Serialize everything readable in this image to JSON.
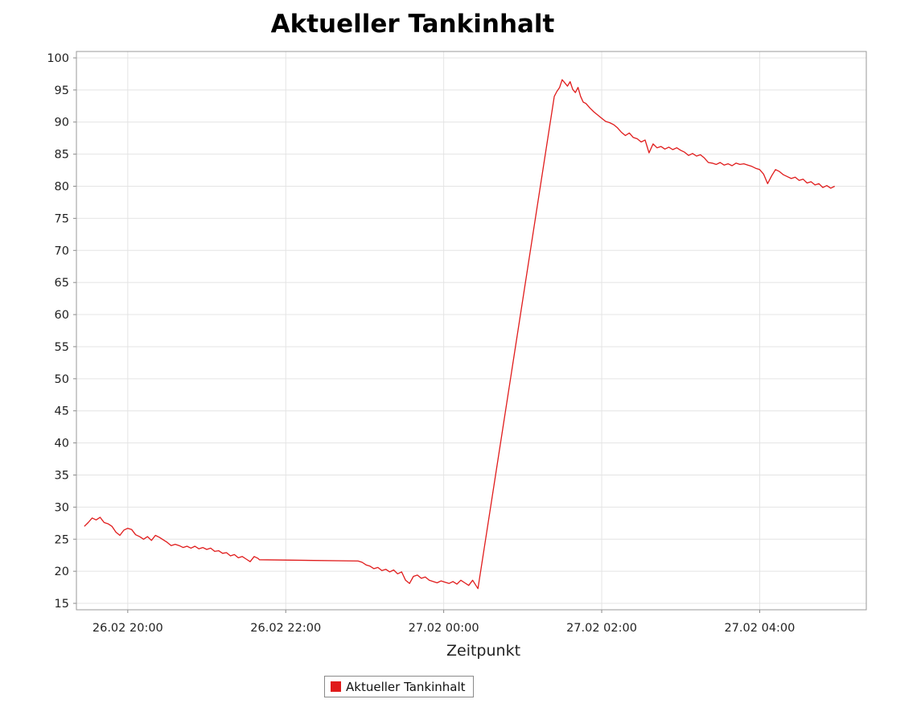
{
  "chart_data": {
    "type": "line",
    "title": "Aktueller Tankinhalt",
    "xlabel": "Zeitpunkt",
    "ylabel": "",
    "ylim": [
      14,
      101
    ],
    "xlim": [
      "26.02 19:21",
      "27.02 05:21"
    ],
    "yticks": [
      15,
      20,
      25,
      30,
      35,
      40,
      45,
      50,
      55,
      60,
      65,
      70,
      75,
      80,
      85,
      90,
      95,
      100
    ],
    "xticks": [
      {
        "time": "26.02 20:00",
        "label": "26.02 20:00"
      },
      {
        "time": "26.02 22:00",
        "label": "26.02 22:00"
      },
      {
        "time": "27.02 00:00",
        "label": "27.02 00:00"
      },
      {
        "time": "27.02 02:00",
        "label": "27.02 02:00"
      },
      {
        "time": "27.02 04:00",
        "label": "27.02 04:00"
      }
    ],
    "grid": true,
    "legend_position": "bottom-center",
    "series": [
      {
        "name": "Aktueller Tankinhalt",
        "color": "#e01b1b",
        "points": [
          [
            "26.02 19:27",
            27.0
          ],
          [
            "26.02 19:30",
            27.6
          ],
          [
            "26.02 19:33",
            28.3
          ],
          [
            "26.02 19:36",
            28.0
          ],
          [
            "26.02 19:39",
            28.4
          ],
          [
            "26.02 19:42",
            27.6
          ],
          [
            "26.02 19:45",
            27.4
          ],
          [
            "26.02 19:48",
            27.0
          ],
          [
            "26.02 19:51",
            26.1
          ],
          [
            "26.02 19:54",
            25.6
          ],
          [
            "26.02 19:57",
            26.4
          ],
          [
            "26.02 20:00",
            26.7
          ],
          [
            "26.02 20:03",
            26.5
          ],
          [
            "26.02 20:06",
            25.7
          ],
          [
            "26.02 20:09",
            25.4
          ],
          [
            "26.02 20:12",
            25.0
          ],
          [
            "26.02 20:15",
            25.4
          ],
          [
            "26.02 20:18",
            24.8
          ],
          [
            "26.02 20:21",
            25.6
          ],
          [
            "26.02 20:24",
            25.3
          ],
          [
            "26.02 20:27",
            24.9
          ],
          [
            "26.02 20:30",
            24.5
          ],
          [
            "26.02 20:33",
            24.0
          ],
          [
            "26.02 20:36",
            24.2
          ],
          [
            "26.02 20:39",
            24.0
          ],
          [
            "26.02 20:42",
            23.7
          ],
          [
            "26.02 20:45",
            23.9
          ],
          [
            "26.02 20:48",
            23.6
          ],
          [
            "26.02 20:51",
            23.9
          ],
          [
            "26.02 20:54",
            23.5
          ],
          [
            "26.02 20:57",
            23.7
          ],
          [
            "26.02 21:00",
            23.4
          ],
          [
            "26.02 21:03",
            23.6
          ],
          [
            "26.02 21:06",
            23.1
          ],
          [
            "26.02 21:09",
            23.2
          ],
          [
            "26.02 21:12",
            22.8
          ],
          [
            "26.02 21:15",
            22.9
          ],
          [
            "26.02 21:18",
            22.4
          ],
          [
            "26.02 21:21",
            22.6
          ],
          [
            "26.02 21:24",
            22.1
          ],
          [
            "26.02 21:27",
            22.3
          ],
          [
            "26.02 21:30",
            21.9
          ],
          [
            "26.02 21:33",
            21.5
          ],
          [
            "26.02 21:36",
            22.3
          ],
          [
            "26.02 21:39",
            22.0
          ],
          [
            "26.02 21:40",
            21.8
          ],
          [
            "26.02 22:55",
            21.6
          ],
          [
            "26.02 22:58",
            21.4
          ],
          [
            "26.02 23:01",
            21.0
          ],
          [
            "26.02 23:04",
            20.8
          ],
          [
            "26.02 23:07",
            20.4
          ],
          [
            "26.02 23:10",
            20.6
          ],
          [
            "26.02 23:13",
            20.1
          ],
          [
            "26.02 23:16",
            20.3
          ],
          [
            "26.02 23:19",
            19.9
          ],
          [
            "26.02 23:22",
            20.2
          ],
          [
            "26.02 23:25",
            19.6
          ],
          [
            "26.02 23:28",
            19.9
          ],
          [
            "26.02 23:31",
            18.6
          ],
          [
            "26.02 23:34",
            18.1
          ],
          [
            "26.02 23:37",
            19.2
          ],
          [
            "26.02 23:40",
            19.4
          ],
          [
            "26.02 23:43",
            18.9
          ],
          [
            "26.02 23:46",
            19.1
          ],
          [
            "26.02 23:49",
            18.6
          ],
          [
            "26.02 23:52",
            18.4
          ],
          [
            "26.02 23:55",
            18.2
          ],
          [
            "26.02 23:58",
            18.5
          ],
          [
            "27.02 00:01",
            18.3
          ],
          [
            "27.02 00:04",
            18.1
          ],
          [
            "27.02 00:07",
            18.4
          ],
          [
            "27.02 00:10",
            18.0
          ],
          [
            "27.02 00:13",
            18.6
          ],
          [
            "27.02 00:16",
            18.2
          ],
          [
            "27.02 00:19",
            17.8
          ],
          [
            "27.02 00:22",
            18.6
          ],
          [
            "27.02 00:26",
            17.3
          ],
          [
            "27.02 01:24",
            94.0
          ],
          [
            "27.02 01:26",
            94.8
          ],
          [
            "27.02 01:28",
            95.4
          ],
          [
            "27.02 01:30",
            96.6
          ],
          [
            "27.02 01:32",
            96.1
          ],
          [
            "27.02 01:34",
            95.6
          ],
          [
            "27.02 01:36",
            96.3
          ],
          [
            "27.02 01:38",
            95.1
          ],
          [
            "27.02 01:40",
            94.6
          ],
          [
            "27.02 01:42",
            95.4
          ],
          [
            "27.02 01:44",
            94.0
          ],
          [
            "27.02 01:46",
            93.1
          ],
          [
            "27.02 01:48",
            92.9
          ],
          [
            "27.02 01:51",
            92.2
          ],
          [
            "27.02 01:54",
            91.6
          ],
          [
            "27.02 01:57",
            91.1
          ],
          [
            "27.02 02:00",
            90.6
          ],
          [
            "27.02 02:03",
            90.1
          ],
          [
            "27.02 02:06",
            89.9
          ],
          [
            "27.02 02:09",
            89.6
          ],
          [
            "27.02 02:12",
            89.1
          ],
          [
            "27.02 02:15",
            88.4
          ],
          [
            "27.02 02:18",
            87.9
          ],
          [
            "27.02 02:21",
            88.3
          ],
          [
            "27.02 02:24",
            87.6
          ],
          [
            "27.02 02:27",
            87.4
          ],
          [
            "27.02 02:30",
            86.9
          ],
          [
            "27.02 02:33",
            87.2
          ],
          [
            "27.02 02:36",
            85.2
          ],
          [
            "27.02 02:39",
            86.6
          ],
          [
            "27.02 02:42",
            86.0
          ],
          [
            "27.02 02:45",
            86.2
          ],
          [
            "27.02 02:48",
            85.8
          ],
          [
            "27.02 02:51",
            86.1
          ],
          [
            "27.02 02:54",
            85.7
          ],
          [
            "27.02 02:57",
            86.0
          ],
          [
            "27.02 03:00",
            85.6
          ],
          [
            "27.02 03:03",
            85.3
          ],
          [
            "27.02 03:06",
            84.8
          ],
          [
            "27.02 03:09",
            85.1
          ],
          [
            "27.02 03:12",
            84.7
          ],
          [
            "27.02 03:15",
            84.9
          ],
          [
            "27.02 03:18",
            84.4
          ],
          [
            "27.02 03:21",
            83.7
          ],
          [
            "27.02 03:24",
            83.6
          ],
          [
            "27.02 03:27",
            83.4
          ],
          [
            "27.02 03:30",
            83.7
          ],
          [
            "27.02 03:33",
            83.3
          ],
          [
            "27.02 03:36",
            83.5
          ],
          [
            "27.02 03:39",
            83.2
          ],
          [
            "27.02 03:42",
            83.6
          ],
          [
            "27.02 03:45",
            83.4
          ],
          [
            "27.02 03:48",
            83.5
          ],
          [
            "27.02 03:51",
            83.3
          ],
          [
            "27.02 03:54",
            83.1
          ],
          [
            "27.02 03:57",
            82.8
          ],
          [
            "27.02 04:00",
            82.6
          ],
          [
            "27.02 04:03",
            81.9
          ],
          [
            "27.02 04:06",
            80.4
          ],
          [
            "27.02 04:09",
            81.6
          ],
          [
            "27.02 04:12",
            82.6
          ],
          [
            "27.02 04:15",
            82.3
          ],
          [
            "27.02 04:18",
            81.8
          ],
          [
            "27.02 04:21",
            81.5
          ],
          [
            "27.02 04:24",
            81.2
          ],
          [
            "27.02 04:27",
            81.4
          ],
          [
            "27.02 04:30",
            80.9
          ],
          [
            "27.02 04:33",
            81.1
          ],
          [
            "27.02 04:36",
            80.5
          ],
          [
            "27.02 04:39",
            80.7
          ],
          [
            "27.02 04:42",
            80.2
          ],
          [
            "27.02 04:45",
            80.4
          ],
          [
            "27.02 04:48",
            79.8
          ],
          [
            "27.02 04:51",
            80.1
          ],
          [
            "27.02 04:54",
            79.7
          ],
          [
            "27.02 04:57",
            80.0
          ]
        ]
      }
    ]
  }
}
